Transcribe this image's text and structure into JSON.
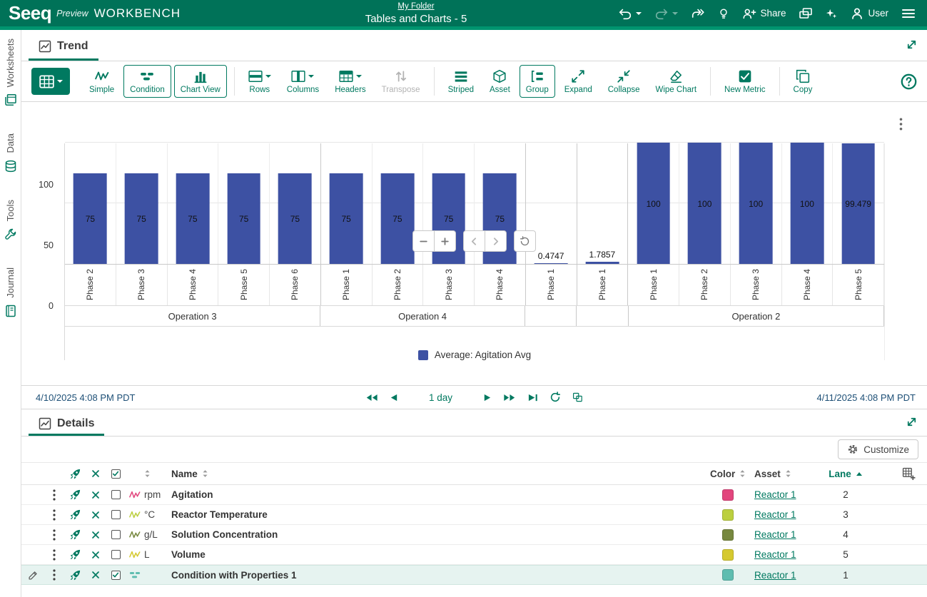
{
  "topbar": {
    "logo": "Seeq",
    "preview": "Preview",
    "workbench": "WORKBENCH",
    "breadcrumb": "My Folder",
    "title": "Tables and Charts - 5",
    "share_label": "Share",
    "user_label": "User"
  },
  "sidebar": {
    "items": [
      {
        "id": "worksheets",
        "label": "Worksheets"
      },
      {
        "id": "data",
        "label": "Data"
      },
      {
        "id": "tools",
        "label": "Tools"
      },
      {
        "id": "journal",
        "label": "Journal"
      }
    ]
  },
  "trend": {
    "tab_label": "Trend",
    "toolbar": [
      {
        "type": "primary",
        "icon": "table",
        "caret": true,
        "label": "",
        "id": "table-type"
      },
      {
        "icon": "signal",
        "label": "Simple",
        "id": "simple"
      },
      {
        "icon": "condition",
        "label": "Condition",
        "boxed": true,
        "id": "condition"
      },
      {
        "icon": "chart",
        "label": "Chart View",
        "boxed": true,
        "id": "chart-view"
      },
      {
        "type": "divider"
      },
      {
        "icon": "rows",
        "label": "Rows",
        "caret": true,
        "id": "rows"
      },
      {
        "icon": "columns",
        "label": "Columns",
        "caret": true,
        "id": "columns"
      },
      {
        "icon": "headers",
        "label": "Headers",
        "caret": true,
        "id": "headers"
      },
      {
        "icon": "transpose",
        "label": "Transpose",
        "disabled": true,
        "id": "transpose"
      },
      {
        "type": "divider"
      },
      {
        "icon": "striped",
        "label": "Striped",
        "id": "striped"
      },
      {
        "icon": "asset",
        "label": "Asset",
        "id": "asset"
      },
      {
        "icon": "group",
        "label": "Group",
        "boxed": true,
        "id": "group"
      },
      {
        "icon": "expand",
        "label": "Expand",
        "id": "expand"
      },
      {
        "icon": "collapse",
        "label": "Collapse",
        "id": "collapse"
      },
      {
        "icon": "wipe",
        "label": "Wipe Chart",
        "id": "wipe-chart"
      },
      {
        "type": "divider"
      },
      {
        "icon": "metric",
        "label": "New Metric",
        "id": "new-metric"
      },
      {
        "type": "divider"
      },
      {
        "icon": "copy",
        "label": "Copy",
        "id": "copy"
      }
    ]
  },
  "chart_data": {
    "type": "bar",
    "title": "",
    "xlabel": "",
    "ylabel": "",
    "ylim": [
      0,
      100
    ],
    "yticks": [
      0,
      50,
      100
    ],
    "grid": true,
    "legend_position": "bottom",
    "bar_color": "#3D51A3",
    "legend": [
      {
        "label": "Average: Agitation Avg",
        "color": "#3D51A3"
      }
    ],
    "groups": [
      {
        "label": "Operation 3",
        "bars": [
          {
            "category": "Phase 2",
            "value": 75,
            "label": "75"
          },
          {
            "category": "Phase 3",
            "value": 75,
            "label": "75"
          },
          {
            "category": "Phase 4",
            "value": 75,
            "label": "75"
          },
          {
            "category": "Phase 5",
            "value": 75,
            "label": "75"
          },
          {
            "category": "Phase 6",
            "value": 75,
            "label": "75"
          }
        ]
      },
      {
        "label": "Operation 4",
        "bars": [
          {
            "category": "Phase 1",
            "value": 75,
            "label": "75"
          },
          {
            "category": "Phase 2",
            "value": 75,
            "label": "75"
          },
          {
            "category": "Phase 3",
            "value": 75,
            "label": "75"
          },
          {
            "category": "Phase 4",
            "value": 75,
            "label": "75"
          }
        ]
      },
      {
        "label": "",
        "bars": [
          {
            "category": "Phase 1",
            "value": 0.4747,
            "label": "0.4747"
          }
        ]
      },
      {
        "label": "",
        "bars": [
          {
            "category": "Phase 1",
            "value": 1.7857,
            "label": "1.7857"
          }
        ]
      },
      {
        "label": "Operation 2",
        "bars": [
          {
            "category": "Phase 1",
            "value": 100,
            "label": "100"
          },
          {
            "category": "Phase 2",
            "value": 100,
            "label": "100"
          },
          {
            "category": "Phase 3",
            "value": 100,
            "label": "100"
          },
          {
            "category": "Phase 4",
            "value": 100,
            "label": "100"
          },
          {
            "category": "Phase 5",
            "value": 99.479,
            "label": "99.479"
          }
        ]
      }
    ]
  },
  "daterange": {
    "start": "4/10/2025 4:08 PM PDT",
    "duration": "1 day",
    "end": "4/11/2025 4:08 PM PDT"
  },
  "details": {
    "tab_label": "Details",
    "customize_label": "Customize",
    "headers": {
      "name": "Name",
      "color": "Color",
      "asset": "Asset",
      "lane": "Lane"
    },
    "rows": [
      {
        "type": "signal",
        "unit": "rpm",
        "name": "Agitation",
        "color": "#E2467D",
        "asset": "Reactor 1",
        "lane": "2",
        "selected": false
      },
      {
        "type": "signal",
        "unit": "°C",
        "name": "Reactor Temperature",
        "color": "#BCCF3F",
        "asset": "Reactor 1",
        "lane": "3",
        "selected": false
      },
      {
        "type": "signal",
        "unit": "g/L",
        "name": "Solution Concentration",
        "color": "#77883F",
        "asset": "Reactor 1",
        "lane": "4",
        "selected": false
      },
      {
        "type": "signal",
        "unit": "L",
        "name": "Volume",
        "color": "#D5C92F",
        "asset": "Reactor 1",
        "lane": "5",
        "selected": false
      },
      {
        "type": "condition",
        "unit": "",
        "name": "Condition with Properties 1",
        "color": "#5FBDB0",
        "asset": "Reactor 1",
        "lane": "1",
        "selected": true
      }
    ]
  }
}
